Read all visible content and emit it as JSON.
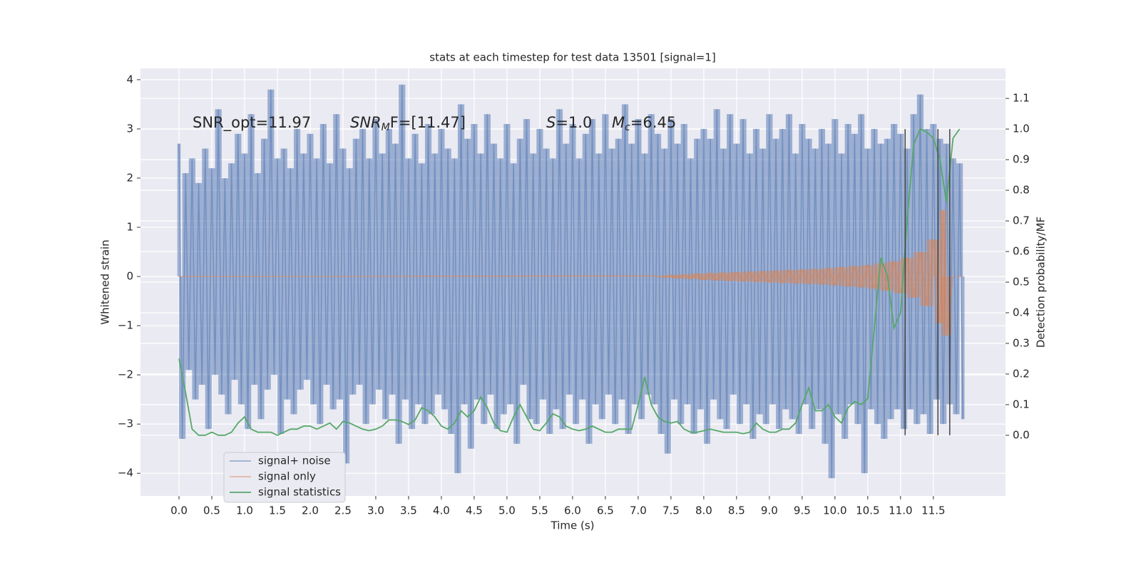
{
  "chart_data": {
    "type": "timeseries",
    "title": "stats at each timestep for test data 13501 [signal=1]",
    "x_label": "Time (s)",
    "y_label": "Whitened strain",
    "y2_label": "Detection probability/MF",
    "xlim": [
      -0.587,
      12.6
    ],
    "ylim": [
      -4.46,
      4.23
    ],
    "y2lim": [
      -0.198,
      1.198
    ],
    "xticks": [
      {
        "value": 0,
        "label": "0.0"
      },
      {
        "value": 0.5,
        "label": "0.5"
      },
      {
        "value": 1,
        "label": "1.0"
      },
      {
        "value": 1.5,
        "label": "1.5"
      },
      {
        "value": 2,
        "label": "2.0"
      },
      {
        "value": 2.5,
        "label": "2.5"
      },
      {
        "value": 3,
        "label": "3.0"
      },
      {
        "value": 3.5,
        "label": "3.5"
      },
      {
        "value": 4,
        "label": "4.0"
      },
      {
        "value": 4.5,
        "label": "4.5"
      },
      {
        "value": 5,
        "label": "5.0"
      },
      {
        "value": 5.5,
        "label": "5.5"
      },
      {
        "value": 6,
        "label": "6.0"
      },
      {
        "value": 6.5,
        "label": "6.5"
      },
      {
        "value": 7,
        "label": "7.0"
      },
      {
        "value": 7.5,
        "label": "7.5"
      },
      {
        "value": 8,
        "label": "8.0"
      },
      {
        "value": 8.5,
        "label": "8.5"
      },
      {
        "value": 9,
        "label": "9.0"
      },
      {
        "value": 9.5,
        "label": "9.5"
      },
      {
        "value": 10,
        "label": "10.0"
      },
      {
        "value": 10.5,
        "label": "10.5"
      },
      {
        "value": 11,
        "label": "11.0"
      },
      {
        "value": 11.5,
        "label": "11.5"
      }
    ],
    "yticks": [
      {
        "value": -4,
        "label": "−4"
      },
      {
        "value": -3,
        "label": "−3"
      },
      {
        "value": -2,
        "label": "−2"
      },
      {
        "value": -1,
        "label": "−1"
      },
      0,
      1,
      2,
      3,
      4
    ],
    "y2ticks": [
      {
        "value": 0,
        "label": "0.0"
      },
      {
        "value": 0.1,
        "label": "0.1"
      },
      {
        "value": 0.2,
        "label": "0.2"
      },
      {
        "value": 0.3,
        "label": "0.3"
      },
      {
        "value": 0.4,
        "label": "0.4"
      },
      {
        "value": 0.5,
        "label": "0.5"
      },
      {
        "value": 0.6,
        "label": "0.6"
      },
      {
        "value": 0.7,
        "label": "0.7"
      },
      {
        "value": 0.8,
        "label": "0.8"
      },
      {
        "value": 0.9,
        "label": "0.9"
      },
      {
        "value": 1.0,
        "label": "1.0"
      },
      {
        "value": 1.1,
        "label": "1.1"
      }
    ],
    "grid": true,
    "legend": "lower left",
    "annotations": [
      {
        "text": "SNR_opt=11.97"
      },
      {
        "math": "SNR",
        "sub": "M",
        "text": "F=[11.47]"
      },
      {
        "math": "S",
        "text": "=1.0"
      },
      {
        "math": "M",
        "sub": "c",
        "text": "=6.45"
      }
    ],
    "vlines": {
      "x": [
        11.07,
        11.57,
        11.75
      ],
      "range": [
        0,
        1.0
      ],
      "axis": "y2",
      "color": "#444444"
    },
    "series": [
      {
        "name": "signal+ noise",
        "color": "#4c72b0",
        "style": "spikes",
        "x": [
          0,
          0.05,
          0.1,
          0.15,
          0.2,
          0.25,
          0.3,
          0.35,
          0.4,
          0.45,
          0.5,
          0.55,
          0.6,
          0.65,
          0.7,
          0.75,
          0.8,
          0.85,
          0.9,
          0.95,
          1,
          1.05,
          1.1,
          1.15,
          1.2,
          1.25,
          1.3,
          1.35,
          1.4,
          1.45,
          1.5,
          1.55,
          1.6,
          1.65,
          1.7,
          1.75,
          1.8,
          1.85,
          1.9,
          1.95,
          2,
          2.05,
          2.1,
          2.15,
          2.2,
          2.25,
          2.3,
          2.35,
          2.4,
          2.45,
          2.5,
          2.55,
          2.6,
          2.65,
          2.7,
          2.75,
          2.8,
          2.85,
          2.9,
          2.95,
          3,
          3.05,
          3.1,
          3.15,
          3.2,
          3.25,
          3.3,
          3.35,
          3.4,
          3.45,
          3.5,
          3.55,
          3.6,
          3.65,
          3.7,
          3.75,
          3.8,
          3.85,
          3.9,
          3.95,
          4,
          4.05,
          4.1,
          4.15,
          4.2,
          4.25,
          4.3,
          4.35,
          4.4,
          4.45,
          4.5,
          4.55,
          4.6,
          4.65,
          4.7,
          4.75,
          4.8,
          4.85,
          4.9,
          4.95,
          5,
          5.05,
          5.1,
          5.15,
          5.2,
          5.25,
          5.3,
          5.35,
          5.4,
          5.45,
          5.5,
          5.55,
          5.6,
          5.65,
          5.7,
          5.75,
          5.8,
          5.85,
          5.9,
          5.95,
          6,
          6.05,
          6.1,
          6.15,
          6.2,
          6.25,
          6.3,
          6.35,
          6.4,
          6.45,
          6.5,
          6.55,
          6.6,
          6.65,
          6.7,
          6.75,
          6.8,
          6.85,
          6.9,
          6.95,
          7,
          7.05,
          7.1,
          7.15,
          7.2,
          7.25,
          7.3,
          7.35,
          7.4,
          7.45,
          7.5,
          7.55,
          7.6,
          7.65,
          7.7,
          7.75,
          7.8,
          7.85,
          7.9,
          7.95,
          8,
          8.05,
          8.1,
          8.15,
          8.2,
          8.25,
          8.3,
          8.35,
          8.4,
          8.45,
          8.5,
          8.55,
          8.6,
          8.65,
          8.7,
          8.75,
          8.8,
          8.85,
          8.9,
          8.95,
          9,
          9.05,
          9.1,
          9.15,
          9.2,
          9.25,
          9.3,
          9.35,
          9.4,
          9.45,
          9.5,
          9.55,
          9.6,
          9.65,
          9.7,
          9.75,
          9.8,
          9.85,
          9.9,
          9.95,
          10,
          10.05,
          10.1,
          10.15,
          10.2,
          10.25,
          10.3,
          10.35,
          10.4,
          10.45,
          10.5,
          10.55,
          10.6,
          10.65,
          10.7,
          10.75,
          10.8,
          10.85,
          10.9,
          10.95,
          11,
          11.05,
          11.1,
          11.15,
          11.2,
          11.25,
          11.3,
          11.35,
          11.4,
          11.45,
          11.5,
          11.55,
          11.6,
          11.65,
          11.7,
          11.75,
          11.8,
          11.85,
          11.9,
          11.95
        ],
        "values": [
          2.7,
          -3.3,
          2.1,
          -1.9,
          2.4,
          -2.5,
          1.9,
          -2.2,
          2.6,
          -3.1,
          2.2,
          -2.0,
          3.4,
          -2.4,
          2.0,
          -2.8,
          2.3,
          -2.1,
          2.9,
          -2.6,
          2.5,
          -3.1,
          3.3,
          -2.2,
          2.1,
          -2.9,
          2.8,
          -2.3,
          3.8,
          -2.0,
          2.4,
          -3.2,
          2.6,
          -2.5,
          2.2,
          -2.8,
          3.0,
          -2.3,
          2.5,
          -2.1,
          2.9,
          -2.6,
          2.4,
          -3.0,
          3.1,
          -2.2,
          2.3,
          -2.7,
          3.3,
          -2.5,
          2.6,
          -3.8,
          2.2,
          -2.4,
          2.8,
          -2.2,
          3.0,
          -3.0,
          2.4,
          -2.6,
          3.2,
          -2.3,
          2.5,
          -2.9,
          3.0,
          -2.4,
          2.7,
          -3.4,
          3.9,
          -2.5,
          2.4,
          -3.1,
          2.9,
          -2.6,
          2.3,
          -3.0,
          3.1,
          -2.8,
          2.5,
          -2.4,
          3.0,
          -2.7,
          2.6,
          -3.2,
          2.4,
          -4.0,
          3.5,
          -2.6,
          2.8,
          -3.5,
          3.1,
          -2.5,
          2.5,
          -3.0,
          3.3,
          -2.4,
          2.7,
          -3.1,
          2.4,
          -2.8,
          3.1,
          -2.6,
          2.3,
          -3.4,
          2.8,
          -2.2,
          3.2,
          -2.9,
          2.5,
          -3.0,
          3.0,
          -2.5,
          2.6,
          -3.2,
          2.4,
          -2.7,
          3.4,
          -3.1,
          2.7,
          -2.4,
          3.1,
          -3.0,
          2.4,
          -2.5,
          2.9,
          -3.4,
          3.2,
          -2.6,
          2.5,
          -2.9,
          3.3,
          -2.4,
          2.6,
          -3.0,
          2.8,
          -2.5,
          3.5,
          -3.2,
          2.7,
          -2.6,
          3.2,
          -2.9,
          2.5,
          -2.4,
          3.3,
          -2.6,
          2.9,
          -3.2,
          2.6,
          -3.6,
          3.2,
          -2.5,
          2.7,
          -3.0,
          3.1,
          -2.6,
          2.4,
          -3.2,
          2.8,
          -2.7,
          3.0,
          -3.4,
          2.8,
          -2.5,
          3.4,
          -2.9,
          2.6,
          -3.1,
          3.3,
          -2.4,
          2.7,
          -3.0,
          3.2,
          -2.6,
          2.5,
          -3.3,
          3.0,
          -2.8,
          2.6,
          -3.0,
          3.3,
          -2.6,
          2.8,
          -3.1,
          3.0,
          -2.7,
          3.3,
          -2.9,
          2.5,
          -3.2,
          3.1,
          -2.6,
          2.8,
          -3.1,
          2.6,
          -2.7,
          3.0,
          -3.4,
          2.7,
          -4.1,
          3.2,
          -2.8,
          2.5,
          -3.3,
          3.1,
          -2.6,
          2.9,
          -3.0,
          3.3,
          -4.0,
          2.6,
          -2.7,
          3.0,
          -3.0,
          2.7,
          -3.3,
          2.8,
          -2.9,
          3.1,
          -2.7,
          2.9,
          -3.1,
          2.6,
          -2.7,
          3.3,
          -3.0,
          3.7,
          -2.8,
          3.0,
          -3.2,
          3.1,
          -2.5,
          2.8,
          -3.0,
          2.7,
          -2.6,
          2.4,
          -2.8,
          2.3,
          -2.9
        ]
      },
      {
        "name": "signal only",
        "color": "#dd8452",
        "style": "spikes",
        "x": [
          0,
          7.3,
          7.4,
          7.5,
          7.6,
          7.7,
          7.8,
          7.9,
          8.0,
          8.1,
          8.2,
          8.3,
          8.4,
          8.5,
          8.6,
          8.7,
          8.8,
          8.9,
          9.0,
          9.1,
          9.2,
          9.3,
          9.4,
          9.5,
          9.6,
          9.7,
          9.8,
          9.9,
          10.0,
          10.1,
          10.2,
          10.3,
          10.4,
          10.5,
          10.6,
          10.7,
          10.8,
          10.9,
          11.0,
          11.1,
          11.2,
          11.3,
          11.4,
          11.5,
          11.6,
          11.65,
          11.7,
          11.8,
          11.95
        ],
        "values": [
          0,
          0.01,
          -0.02,
          0.03,
          -0.04,
          0.04,
          -0.05,
          0.06,
          -0.07,
          0.07,
          -0.08,
          0.08,
          -0.09,
          0.09,
          -0.1,
          0.1,
          -0.11,
          0.11,
          -0.12,
          0.12,
          -0.13,
          0.13,
          -0.14,
          0.14,
          -0.15,
          0.15,
          -0.16,
          0.17,
          -0.18,
          0.19,
          -0.2,
          0.21,
          -0.22,
          0.23,
          -0.25,
          0.27,
          -0.29,
          0.31,
          -0.34,
          0.38,
          -0.43,
          0.5,
          -0.6,
          0.75,
          -0.95,
          1.35,
          -1.2,
          0,
          0
        ]
      },
      {
        "name": "signal statistics",
        "color": "#55a868",
        "style": "line",
        "axis": "y2",
        "x": [
          0,
          0.1,
          0.2,
          0.3,
          0.4,
          0.5,
          0.6,
          0.7,
          0.8,
          0.9,
          1,
          1.1,
          1.2,
          1.3,
          1.4,
          1.5,
          1.6,
          1.7,
          1.8,
          1.9,
          2,
          2.1,
          2.2,
          2.3,
          2.4,
          2.5,
          2.6,
          2.7,
          2.8,
          2.9,
          3,
          3.1,
          3.2,
          3.3,
          3.4,
          3.5,
          3.6,
          3.7,
          3.8,
          3.9,
          4,
          4.1,
          4.2,
          4.3,
          4.4,
          4.5,
          4.6,
          4.7,
          4.8,
          4.9,
          5,
          5.1,
          5.2,
          5.3,
          5.4,
          5.5,
          5.6,
          5.7,
          5.8,
          5.9,
          6,
          6.1,
          6.2,
          6.3,
          6.4,
          6.5,
          6.6,
          6.7,
          6.8,
          6.9,
          7,
          7.1,
          7.2,
          7.3,
          7.4,
          7.5,
          7.6,
          7.7,
          7.8,
          7.9,
          8,
          8.1,
          8.2,
          8.3,
          8.4,
          8.5,
          8.6,
          8.7,
          8.8,
          8.9,
          9,
          9.1,
          9.2,
          9.3,
          9.4,
          9.5,
          9.6,
          9.7,
          9.8,
          9.9,
          10,
          10.1,
          10.2,
          10.3,
          10.4,
          10.5,
          10.6,
          10.7,
          10.8,
          10.9,
          11,
          11.1,
          11.2,
          11.3,
          11.4,
          11.5,
          11.6,
          11.7,
          11.8,
          11.9
        ],
        "values": [
          0.25,
          0.14,
          0.02,
          0.0,
          0.0,
          0.01,
          0.0,
          0.0,
          0.01,
          0.04,
          0.06,
          0.02,
          0.01,
          0.01,
          0.01,
          0.0,
          0.01,
          0.02,
          0.02,
          0.03,
          0.03,
          0.02,
          0.03,
          0.04,
          0.02,
          0.045,
          0.04,
          0.03,
          0.02,
          0.015,
          0.02,
          0.03,
          0.05,
          0.05,
          0.045,
          0.035,
          0.05,
          0.09,
          0.08,
          0.06,
          0.03,
          0.02,
          0.04,
          0.08,
          0.06,
          0.08,
          0.125,
          0.09,
          0.04,
          0.015,
          0.01,
          0.06,
          0.1,
          0.06,
          0.02,
          0.015,
          0.04,
          0.07,
          0.06,
          0.03,
          0.02,
          0.015,
          0.02,
          0.03,
          0.02,
          0.01,
          0.01,
          0.02,
          0.02,
          0.02,
          0.1,
          0.19,
          0.1,
          0.06,
          0.045,
          0.04,
          0.045,
          0.02,
          0.01,
          0.01,
          0.015,
          0.02,
          0.015,
          0.01,
          0.01,
          0.01,
          0.005,
          0.01,
          0.04,
          0.02,
          0.01,
          0.01,
          0.02,
          0.02,
          0.04,
          0.1,
          0.155,
          0.08,
          0.08,
          0.1,
          0.06,
          0.04,
          0.09,
          0.11,
          0.1,
          0.12,
          0.35,
          0.58,
          0.52,
          0.35,
          0.4,
          0.7,
          0.95,
          1.0,
          0.99,
          0.97,
          0.9,
          0.76,
          0.97,
          1.0
        ]
      }
    ]
  }
}
